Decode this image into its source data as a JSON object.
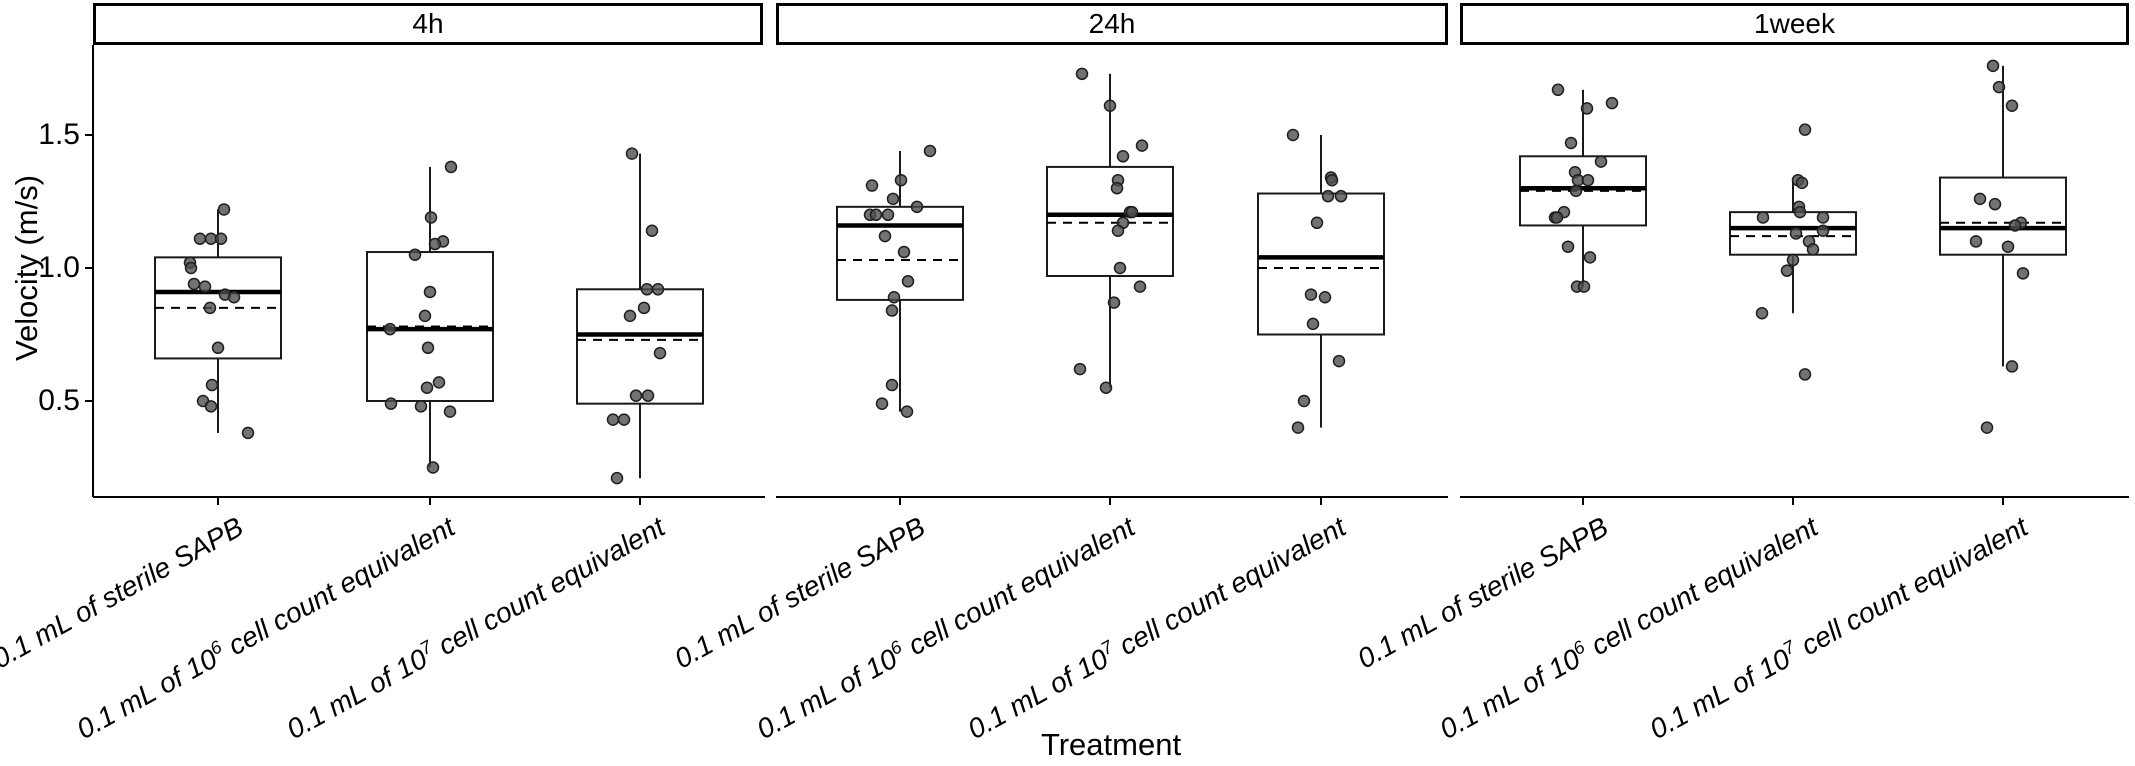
{
  "chart_data": {
    "type": "boxplot",
    "title": "",
    "xlabel": "Treatment",
    "ylabel": "Velocity (m/s)",
    "ylim": [
      0.14,
      1.84
    ],
    "yticks": [
      1.5,
      1.0,
      0.5
    ],
    "ytick_labels": [
      "1.5",
      "1.0",
      "0.5"
    ],
    "grid": "off",
    "legend": "none",
    "point_color": "#4f4f4f",
    "point_edge_color": "#1f1f1f",
    "line_color": "#000000",
    "treatments": [
      {
        "pre": "0.1 mL of sterile SAPB",
        "sup": "",
        "post": "",
        "full": "0.1 mL of sterile SAPB"
      },
      {
        "pre": "0.1 mL of 10",
        "sup": "6",
        "post": " cell count equivalent",
        "full": "0.1 mL of 10^6 cell count equivalent"
      },
      {
        "pre": "0.1 mL of 10",
        "sup": "7",
        "post": " cell count equivalent",
        "full": "0.1 mL of 10^7 cell count equivalent"
      }
    ],
    "facets": [
      {
        "label": "4h",
        "groups": [
          {
            "min": 0.38,
            "q1": 0.66,
            "median": 0.91,
            "mean": 0.85,
            "q3": 1.04,
            "max": 1.22,
            "points": [
              [
                1.22,
                6
              ],
              [
                1.11,
                -18
              ],
              [
                1.11,
                -7
              ],
              [
                1.11,
                3
              ],
              [
                1.02,
                -28
              ],
              [
                1.0,
                -27
              ],
              [
                0.94,
                -24
              ],
              [
                0.93,
                -13
              ],
              [
                0.9,
                7
              ],
              [
                0.89,
                16
              ],
              [
                0.85,
                -8
              ],
              [
                0.7,
                0
              ],
              [
                0.56,
                -6
              ],
              [
                0.5,
                -15
              ],
              [
                0.48,
                -7
              ],
              [
                0.38,
                30
              ]
            ]
          },
          {
            "min": 0.25,
            "q1": 0.5,
            "median": 0.77,
            "mean": 0.78,
            "q3": 1.06,
            "max": 1.38,
            "points": [
              [
                1.38,
                21
              ],
              [
                1.19,
                1
              ],
              [
                1.1,
                13
              ],
              [
                1.09,
                5
              ],
              [
                1.05,
                -15
              ],
              [
                0.91,
                0
              ],
              [
                0.82,
                -5
              ],
              [
                0.77,
                -40
              ],
              [
                0.7,
                -2
              ],
              [
                0.57,
                9
              ],
              [
                0.55,
                -3
              ],
              [
                0.49,
                -39
              ],
              [
                0.48,
                -9
              ],
              [
                0.46,
                20
              ],
              [
                0.25,
                3
              ]
            ]
          },
          {
            "min": 0.21,
            "q1": 0.49,
            "median": 0.75,
            "mean": 0.73,
            "q3": 0.92,
            "max": 1.43,
            "points": [
              [
                1.43,
                -8
              ],
              [
                1.14,
                12
              ],
              [
                0.92,
                7
              ],
              [
                0.92,
                18
              ],
              [
                0.85,
                4
              ],
              [
                0.82,
                -10
              ],
              [
                0.68,
                20
              ],
              [
                0.52,
                -4
              ],
              [
                0.52,
                8
              ],
              [
                0.43,
                -27
              ],
              [
                0.43,
                -16
              ],
              [
                0.21,
                -23
              ]
            ]
          }
        ]
      },
      {
        "label": "24h",
        "groups": [
          {
            "min": 0.46,
            "q1": 0.88,
            "median": 1.16,
            "mean": 1.03,
            "q3": 1.23,
            "max": 1.44,
            "points": [
              [
                1.44,
                30
              ],
              [
                1.33,
                1
              ],
              [
                1.31,
                -28
              ],
              [
                1.26,
                -7
              ],
              [
                1.23,
                17
              ],
              [
                1.2,
                -30
              ],
              [
                1.2,
                -24
              ],
              [
                1.2,
                -12
              ],
              [
                1.12,
                -15
              ],
              [
                1.06,
                4
              ],
              [
                0.95,
                8
              ],
              [
                0.89,
                -6
              ],
              [
                0.84,
                -8
              ],
              [
                0.56,
                -8
              ],
              [
                0.49,
                -18
              ],
              [
                0.46,
                7
              ]
            ]
          },
          {
            "min": 0.55,
            "q1": 0.97,
            "median": 1.2,
            "mean": 1.17,
            "q3": 1.38,
            "max": 1.73,
            "points": [
              [
                1.73,
                -28
              ],
              [
                1.61,
                0
              ],
              [
                1.46,
                32
              ],
              [
                1.42,
                13
              ],
              [
                1.33,
                8
              ],
              [
                1.3,
                7
              ],
              [
                1.21,
                20
              ],
              [
                1.21,
                22
              ],
              [
                1.17,
                13
              ],
              [
                1.14,
                8
              ],
              [
                1.0,
                10
              ],
              [
                0.93,
                30
              ],
              [
                0.87,
                4
              ],
              [
                0.62,
                -30
              ],
              [
                0.55,
                -4
              ]
            ]
          },
          {
            "min": 0.4,
            "q1": 0.75,
            "median": 1.04,
            "mean": 1.0,
            "q3": 1.28,
            "max": 1.5,
            "points": [
              [
                1.5,
                -28
              ],
              [
                1.34,
                10
              ],
              [
                1.33,
                11
              ],
              [
                1.27,
                7
              ],
              [
                1.27,
                20
              ],
              [
                1.17,
                -4
              ],
              [
                0.9,
                -10
              ],
              [
                0.89,
                4
              ],
              [
                0.79,
                -8
              ],
              [
                0.65,
                18
              ],
              [
                0.5,
                -17
              ],
              [
                0.4,
                -23
              ]
            ]
          }
        ]
      },
      {
        "label": "1week",
        "groups": [
          {
            "min": 0.93,
            "q1": 1.16,
            "median": 1.3,
            "mean": 1.29,
            "q3": 1.42,
            "max": 1.67,
            "points": [
              [
                1.67,
                -25
              ],
              [
                1.62,
                29
              ],
              [
                1.6,
                4
              ],
              [
                1.47,
                -12
              ],
              [
                1.4,
                18
              ],
              [
                1.36,
                -8
              ],
              [
                1.33,
                -5
              ],
              [
                1.33,
                5
              ],
              [
                1.29,
                -7
              ],
              [
                1.21,
                -19
              ],
              [
                1.19,
                -28
              ],
              [
                1.19,
                -26
              ],
              [
                1.08,
                -15
              ],
              [
                1.04,
                7
              ],
              [
                0.93,
                -6
              ],
              [
                0.93,
                1
              ]
            ]
          },
          {
            "min": 0.83,
            "q1": 1.05,
            "median": 1.15,
            "mean": 1.12,
            "q3": 1.21,
            "max": 1.33,
            "points": [
              [
                1.52,
                12
              ],
              [
                1.33,
                5
              ],
              [
                1.32,
                9
              ],
              [
                1.23,
                6
              ],
              [
                1.21,
                7
              ],
              [
                1.19,
                -30
              ],
              [
                1.19,
                30
              ],
              [
                1.14,
                30
              ],
              [
                1.13,
                3
              ],
              [
                1.1,
                16
              ],
              [
                1.07,
                20
              ],
              [
                1.03,
                0
              ],
              [
                0.99,
                -6
              ],
              [
                0.83,
                -31
              ],
              [
                0.6,
                12
              ]
            ]
          },
          {
            "min": 0.63,
            "q1": 1.05,
            "median": 1.15,
            "mean": 1.17,
            "q3": 1.34,
            "max": 1.76,
            "points": [
              [
                1.76,
                -10
              ],
              [
                1.68,
                -4
              ],
              [
                1.61,
                9
              ],
              [
                1.26,
                -23
              ],
              [
                1.24,
                -8
              ],
              [
                1.17,
                18
              ],
              [
                1.16,
                12
              ],
              [
                1.1,
                -27
              ],
              [
                1.08,
                5
              ],
              [
                0.98,
                20
              ],
              [
                0.63,
                9
              ],
              [
                0.4,
                -16
              ]
            ]
          }
        ]
      }
    ]
  }
}
